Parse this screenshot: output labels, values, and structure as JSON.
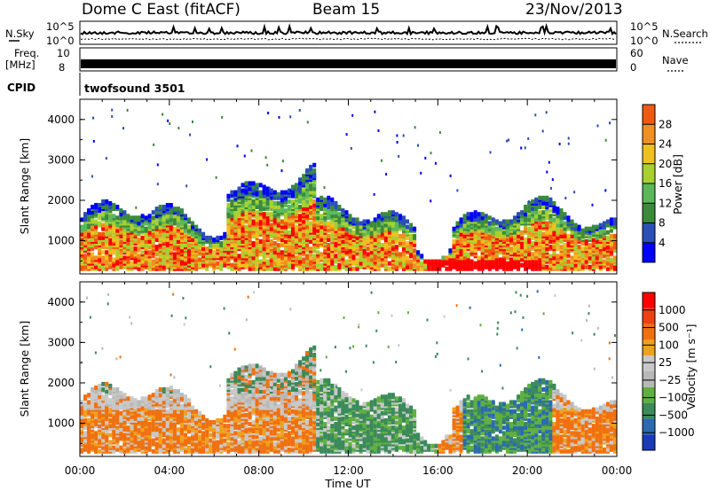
{
  "header": {
    "title": "Dome C East (fitACF)",
    "beam": "Beam 15",
    "date": "23/Nov/2013"
  },
  "status_panels": {
    "nsky_label": "N.Sky",
    "nsky_ticks": [
      "10^5",
      "10^0"
    ],
    "nsearch_label": "N.Search",
    "nsearch_ticks": [
      "10^5",
      "10^0"
    ],
    "freq_label": "Freq.",
    "freq_unit": "[MHz]",
    "freq_ticks": [
      "10",
      "8"
    ],
    "nave_label": "Nave",
    "nave_ticks": [
      "60",
      "0"
    ],
    "cpid_label": "CPID",
    "cpid_value": "twofsound 3501"
  },
  "colors": {
    "power_scale": [
      "#0000ff",
      "#2a4fb5",
      "#3a8a3a",
      "#5ab85a",
      "#a8d030",
      "#f0c020",
      "#f09020",
      "#f05a10",
      "#ff0000"
    ],
    "velocity_scale": [
      "#1a3ab8",
      "#2a6ab0",
      "#3a8a5a",
      "#60b040",
      "#b8b8b8",
      "#c8c8c8",
      "#f0a020",
      "#f07010",
      "#f04010",
      "#ff0000"
    ]
  },
  "chart_data": [
    {
      "type": "heatmap",
      "name": "Power",
      "xlabel": "Time UT",
      "ylabel": "Slant Range [km]",
      "x_ticks": [
        "00:00",
        "04:00",
        "08:00",
        "12:00",
        "16:00",
        "20:00",
        "00:00"
      ],
      "y_ticks": [
        1000,
        2000,
        3000,
        4000
      ],
      "xlim_hours": [
        0,
        24
      ],
      "ylim_km": [
        180,
        4500
      ],
      "colorbar_label": "Power [dB]",
      "colorbar_ticks": [
        4,
        8,
        12,
        16,
        20,
        24,
        28
      ],
      "colorbar_range": [
        0,
        32
      ]
    },
    {
      "type": "heatmap",
      "name": "Velocity",
      "xlabel": "Time UT",
      "ylabel": "Slant Range [km]",
      "x_ticks": [
        "00:00",
        "04:00",
        "08:00",
        "12:00",
        "16:00",
        "20:00",
        "00:00"
      ],
      "y_ticks": [
        1000,
        2000,
        3000,
        4000
      ],
      "xlim_hours": [
        0,
        24
      ],
      "ylim_km": [
        180,
        4500
      ],
      "colorbar_label": "Velocity [m s⁻¹]",
      "colorbar_ticks": [
        "1000",
        "500",
        "100",
        "25",
        "−25",
        "−100",
        "−500",
        "−1000"
      ]
    }
  ]
}
